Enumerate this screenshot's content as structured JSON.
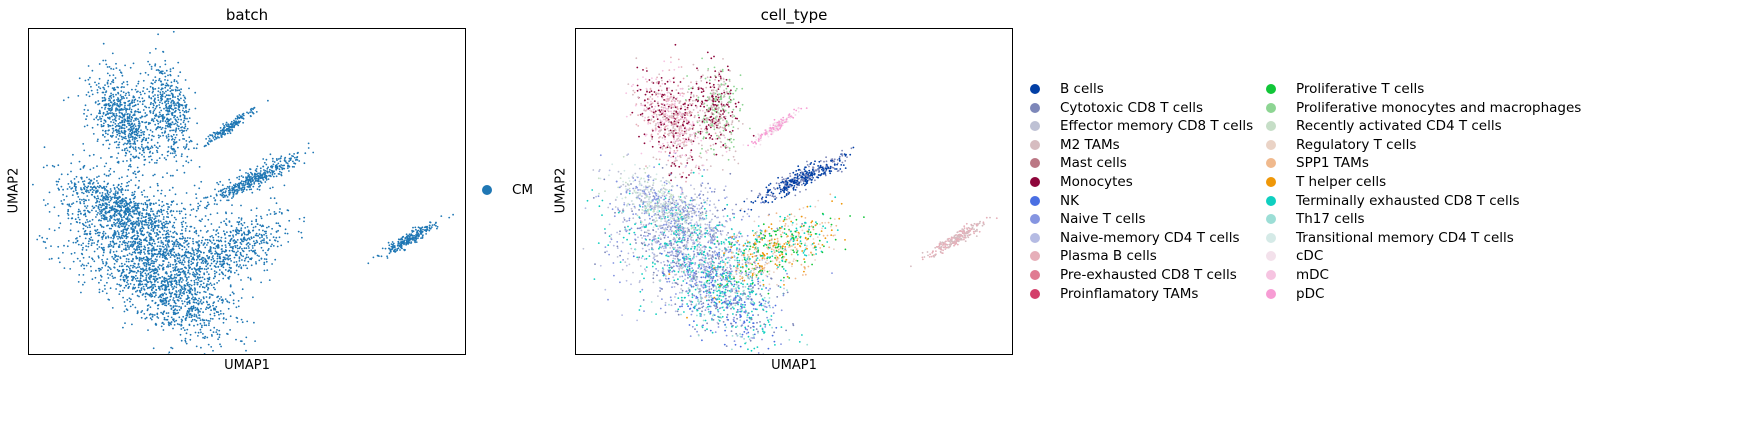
{
  "chart_data": [
    {
      "type": "scatter",
      "title": "batch",
      "xlabel": "UMAP1",
      "ylabel": "UMAP2",
      "grid": false,
      "legend_position": "right",
      "legend": [
        {
          "label": "CM",
          "color": "#1f77b4"
        }
      ]
    },
    {
      "type": "scatter",
      "title": "cell_type",
      "xlabel": "UMAP1",
      "ylabel": "UMAP2",
      "grid": false,
      "legend_position": "right",
      "legend": [
        {
          "label": "B cells",
          "color": "#023fa5"
        },
        {
          "label": "Cytotoxic CD8 T cells",
          "color": "#7d87b9"
        },
        {
          "label": "Effector memory CD8 T cells",
          "color": "#bec1d4"
        },
        {
          "label": "M2 TAMs",
          "color": "#d6bcc0"
        },
        {
          "label": "Mast cells",
          "color": "#bb7784"
        },
        {
          "label": "Monocytes",
          "color": "#8e063b"
        },
        {
          "label": "NK",
          "color": "#4a6fe3"
        },
        {
          "label": "Naive T cells",
          "color": "#8595e1"
        },
        {
          "label": "Naive-memory CD4 T cells",
          "color": "#b5bbe3"
        },
        {
          "label": "Plasma B cells",
          "color": "#e6afb9"
        },
        {
          "label": "Pre-exhausted CD8 T cells",
          "color": "#e07b91"
        },
        {
          "label": "Proinflamatory TAMs",
          "color": "#d33f6a"
        },
        {
          "label": "Proliferative T cells",
          "color": "#11c638"
        },
        {
          "label": "Proliferative monocytes and macrophages",
          "color": "#8dd593"
        },
        {
          "label": "Recently activated CD4 T cells",
          "color": "#c6dec7"
        },
        {
          "label": "Regulatory T cells",
          "color": "#ead3c6"
        },
        {
          "label": "SPP1 TAMs",
          "color": "#f0b98d"
        },
        {
          "label": "T helper cells",
          "color": "#ef9708"
        },
        {
          "label": "Terminally exhausted CD8 T cells",
          "color": "#0fcfc0"
        },
        {
          "label": "Th17 cells",
          "color": "#9cded6"
        },
        {
          "label": "Transitional memory CD4 T cells",
          "color": "#d5eae7"
        },
        {
          "label": "cDC",
          "color": "#f3e1eb"
        },
        {
          "label": "mDC",
          "color": "#f6c4e1"
        },
        {
          "label": "pDC",
          "color": "#f79cd4"
        }
      ]
    }
  ]
}
